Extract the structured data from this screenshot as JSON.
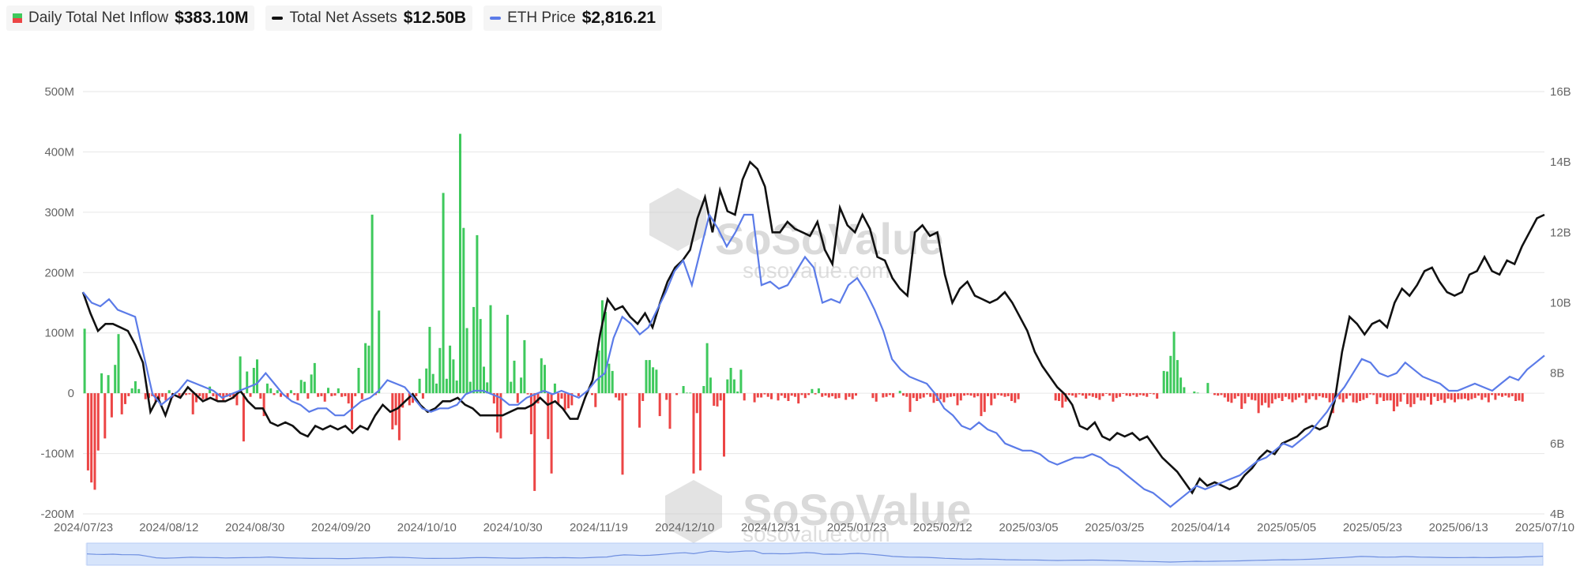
{
  "legend": {
    "inflow": {
      "label": "Daily Total Net Inflow",
      "value": "$383.10M"
    },
    "assets": {
      "label": "Total Net Assets",
      "value": "$12.50B"
    },
    "price": {
      "label": "ETH Price",
      "value": "$2,816.21"
    }
  },
  "watermark": {
    "brand": "SoSoValue",
    "site": "sosovalue.com"
  },
  "colors": {
    "positive": "#3ec95c",
    "negative": "#ec4545",
    "assets": "#111111",
    "price": "#5b7be8",
    "grid": "#e6e6e6",
    "navigator": "#d6e4fb"
  },
  "chart_data": {
    "type": "bar+line",
    "x_tick_labels": [
      "2024/07/23",
      "2024/08/12",
      "2024/08/30",
      "2024/09/20",
      "2024/10/10",
      "2024/10/30",
      "2024/11/19",
      "2024/12/10",
      "2024/12/31",
      "2025/01/23",
      "2025/02/12",
      "2025/03/05",
      "2025/03/25",
      "2025/04/14",
      "2025/05/05",
      "2025/05/23",
      "2025/06/13",
      "2025/07/10"
    ],
    "y_left": {
      "ticks": [
        "500M",
        "400M",
        "300M",
        "200M",
        "100M",
        "0",
        "-100M",
        "-200M"
      ],
      "min": -200,
      "max": 500,
      "unit": "M"
    },
    "y_right": {
      "ticks": [
        "16B",
        "14B",
        "12B",
        "10B",
        "8B",
        "6B",
        "4B"
      ],
      "min": 4,
      "max": 16,
      "unit": "B"
    },
    "series": [
      {
        "name": "Daily Total Net Inflow",
        "type": "bar",
        "unit": "M",
        "values": [
          107,
          -128,
          -148,
          -160,
          -95,
          33,
          -75,
          30,
          -40,
          47,
          98,
          -35,
          -18,
          -5,
          8,
          20,
          7,
          0,
          -10,
          -8,
          -5,
          -14,
          -10,
          -6,
          -12,
          5,
          -7,
          2,
          -8,
          -3,
          -3,
          -2,
          -35,
          -15,
          -5,
          -10,
          -12,
          11,
          -5,
          -12,
          -4,
          -14,
          -6,
          -6,
          -9,
          -20,
          61,
          -80,
          36,
          -6,
          42,
          56,
          -9,
          -38,
          16,
          8,
          -3,
          5,
          -6,
          0,
          -9,
          5,
          -3,
          -12,
          22,
          19,
          -9,
          31,
          50,
          -6,
          -5,
          -14,
          9,
          -5,
          -4,
          8,
          -6,
          -5,
          -17,
          -60,
          -5,
          42,
          -10,
          83,
          79,
          296,
          -3,
          137,
          0,
          0,
          0,
          -60,
          -53,
          -78,
          -24,
          0,
          -20,
          -16,
          -5,
          24,
          -9,
          41,
          110,
          32,
          16,
          75,
          332,
          24,
          79,
          56,
          21,
          430,
          274,
          108,
          19,
          143,
          262,
          123,
          44,
          18,
          146,
          -17,
          -65,
          -75,
          0,
          130,
          19,
          54,
          -16,
          26,
          88,
          -2,
          -68,
          -162,
          -17,
          58,
          47,
          -76,
          -133,
          16,
          -18,
          -9,
          -28,
          -25,
          -20,
          0,
          -5,
          0,
          0,
          0,
          -3,
          -23,
          71,
          154,
          135,
          49,
          37,
          -7,
          -12,
          -135,
          -4,
          0,
          0,
          0,
          -57,
          -13,
          55,
          55,
          43,
          39,
          -38,
          0,
          -11,
          -59,
          0,
          -3,
          0,
          12,
          1,
          1,
          -133,
          -33,
          -128,
          12,
          83,
          26,
          -21,
          -22,
          -12,
          -105,
          23,
          42,
          23,
          3,
          39,
          -12,
          0,
          0,
          -15,
          -7,
          -7,
          -2,
          -6,
          -10,
          0,
          -12,
          -4,
          -8,
          -13,
          -4,
          -6,
          -17,
          -3,
          -8,
          -3,
          7,
          -2,
          8,
          -6,
          -4,
          -7,
          -5,
          -9,
          -8,
          0,
          -11,
          -6,
          -10,
          -4,
          0,
          0,
          0,
          0,
          -8,
          -14,
          0,
          -7,
          -6,
          -3,
          -7,
          0,
          4,
          -4,
          -6,
          -31,
          -8,
          -13,
          -9,
          -7,
          -2,
          -6,
          -16,
          -13,
          -10,
          -15,
          -7,
          -6,
          -5,
          -20,
          -12,
          -4,
          -3,
          -4,
          -7,
          -5,
          -38,
          -31,
          -5,
          -20,
          -9,
          -3,
          -4,
          -6,
          -5,
          -13,
          -16,
          -10,
          0,
          0,
          0,
          0,
          0,
          0,
          0,
          0,
          0,
          0,
          -12,
          -13,
          -24,
          -14,
          -3,
          -4,
          -7,
          -2,
          -4,
          -9,
          -4,
          -6,
          -8,
          -11,
          -5,
          -1,
          -4,
          -14,
          -8,
          -6,
          -1,
          -4,
          -5,
          -3,
          -6,
          -3,
          -4,
          -6,
          -1,
          -2,
          -9,
          0,
          37,
          36,
          62,
          102,
          55,
          26,
          10,
          0,
          0,
          3,
          1,
          0,
          0,
          17,
          0,
          -3,
          -4,
          -3,
          -7,
          -14,
          -16,
          -9,
          -5,
          -26,
          -17,
          -6,
          -11,
          -12,
          -33,
          -20,
          -16,
          -24,
          -17,
          -10,
          -8,
          -13,
          -6,
          -10,
          -15,
          -11,
          -7,
          -4,
          -16,
          -10,
          -5,
          -11,
          -5,
          -7,
          -8,
          -15,
          -33,
          -2,
          -10,
          -15,
          -9,
          -4,
          -15,
          -16,
          -13,
          -11,
          -8,
          -2,
          -3,
          -18,
          -7,
          -13,
          -12,
          -12,
          -30,
          -22,
          -14,
          -2,
          -18,
          -23,
          -18,
          -7,
          -12,
          -12,
          -6,
          -19,
          -6,
          -13,
          -11,
          -16,
          -9,
          -11,
          -15,
          -10,
          -10,
          -9,
          -12,
          -10,
          -8,
          -4,
          -11,
          -7,
          -15,
          -3,
          -11,
          -4,
          -6,
          -4,
          -7,
          -5,
          -13,
          -12,
          -14,
          0,
          0,
          0,
          0,
          0,
          0
        ]
      },
      {
        "name": "Total Net Assets",
        "type": "line",
        "unit": "B",
        "values": [
          10.3,
          9.7,
          9.2,
          9.4,
          9.4,
          9.3,
          9.2,
          8.8,
          8.3,
          6.9,
          7.3,
          6.8,
          7.4,
          7.3,
          7.6,
          7.4,
          7.2,
          7.3,
          7.2,
          7.2,
          7.3,
          7.5,
          7.2,
          7.0,
          7.0,
          6.6,
          6.5,
          6.6,
          6.5,
          6.3,
          6.2,
          6.5,
          6.4,
          6.5,
          6.4,
          6.5,
          6.3,
          6.5,
          6.4,
          6.8,
          7.1,
          6.9,
          7.0,
          7.2,
          7.4,
          7.1,
          6.9,
          7.0,
          7.2,
          7.2,
          7.3,
          7.1,
          7.0,
          6.8,
          6.8,
          6.8,
          6.8,
          6.9,
          7.0,
          7.0,
          7.1,
          7.3,
          7.1,
          7.2,
          7.0,
          6.7,
          6.7,
          7.3,
          7.8,
          9.1,
          10.1,
          9.8,
          9.9,
          9.6,
          9.4,
          9.7,
          9.3,
          10.0,
          10.6,
          11.0,
          11.2,
          11.5,
          12.4,
          13.0,
          12.0,
          13.2,
          12.6,
          12.5,
          13.5,
          14.0,
          13.8,
          13.3,
          12.0,
          12.0,
          12.3,
          12.1,
          12.0,
          11.9,
          12.3,
          11.5,
          11.1,
          12.7,
          12.2,
          12.0,
          12.5,
          12.1,
          11.3,
          11.2,
          10.7,
          10.4,
          10.2,
          12.0,
          12.2,
          11.9,
          12.0,
          10.8,
          10.0,
          10.4,
          10.6,
          10.2,
          10.1,
          10.0,
          10.1,
          10.3,
          10.0,
          9.6,
          9.2,
          8.6,
          8.2,
          7.9,
          7.6,
          7.4,
          7.1,
          6.5,
          6.4,
          6.6,
          6.2,
          6.1,
          6.3,
          6.2,
          6.3,
          6.1,
          6.2,
          5.9,
          5.6,
          5.4,
          5.2,
          4.9,
          4.6,
          5.0,
          4.8,
          4.9,
          4.8,
          4.7,
          4.8,
          5.1,
          5.3,
          5.6,
          5.8,
          5.7,
          6.0,
          6.1,
          6.2,
          6.4,
          6.5,
          6.4,
          6.5,
          7.2,
          8.6,
          9.6,
          9.4,
          9.1,
          9.4,
          9.5,
          9.3,
          10.0,
          10.4,
          10.2,
          10.5,
          10.9,
          11.0,
          10.6,
          10.3,
          10.2,
          10.3,
          10.8,
          10.9,
          11.3,
          10.9,
          10.8,
          11.2,
          11.1,
          11.6,
          12.0,
          12.4,
          12.5
        ]
      },
      {
        "name": "ETH Price",
        "type": "line",
        "unit": "B",
        "values": [
          10.3,
          10.0,
          9.9,
          10.1,
          9.8,
          9.7,
          9.6,
          8.5,
          7.4,
          7.1,
          7.3,
          7.5,
          7.8,
          7.7,
          7.6,
          7.5,
          7.3,
          7.4,
          7.5,
          7.6,
          7.7,
          8.0,
          7.7,
          7.4,
          7.2,
          7.1,
          6.9,
          7.0,
          7.0,
          6.8,
          6.8,
          7.0,
          7.2,
          7.3,
          7.5,
          7.8,
          7.7,
          7.6,
          7.3,
          7.0,
          6.9,
          7.0,
          7.0,
          7.1,
          7.4,
          7.5,
          7.5,
          7.4,
          7.3,
          7.1,
          7.1,
          7.3,
          7.4,
          7.5,
          7.4,
          7.5,
          7.4,
          7.3,
          7.5,
          7.8,
          8.0,
          9.0,
          9.6,
          9.4,
          9.1,
          9.3,
          9.8,
          10.3,
          10.9,
          11.2,
          10.5,
          11.5,
          12.5,
          12.1,
          11.6,
          12.0,
          12.5,
          12.5,
          10.5,
          10.6,
          10.4,
          10.5,
          10.9,
          11.3,
          11.0,
          10.0,
          10.1,
          10.0,
          10.5,
          10.7,
          10.3,
          9.8,
          9.2,
          8.4,
          8.1,
          7.9,
          7.8,
          7.7,
          7.4,
          7.0,
          6.8,
          6.5,
          6.4,
          6.6,
          6.4,
          6.3,
          6.0,
          5.9,
          5.8,
          5.8,
          5.7,
          5.5,
          5.4,
          5.5,
          5.6,
          5.6,
          5.7,
          5.6,
          5.4,
          5.3,
          5.1,
          4.9,
          4.7,
          4.6,
          4.4,
          4.2,
          4.4,
          4.6,
          4.8,
          4.7,
          4.8,
          4.9,
          5.0,
          5.1,
          5.3,
          5.5,
          5.6,
          5.8,
          6.0,
          5.9,
          6.1,
          6.3,
          6.6,
          6.9,
          7.3,
          7.6,
          8.0,
          8.4,
          8.3,
          8.0,
          7.9,
          8.0,
          8.3,
          8.1,
          7.9,
          7.8,
          7.7,
          7.5,
          7.5,
          7.6,
          7.7,
          7.6,
          7.5,
          7.7,
          7.9,
          7.8,
          8.1,
          8.3,
          8.5
        ]
      }
    ]
  }
}
